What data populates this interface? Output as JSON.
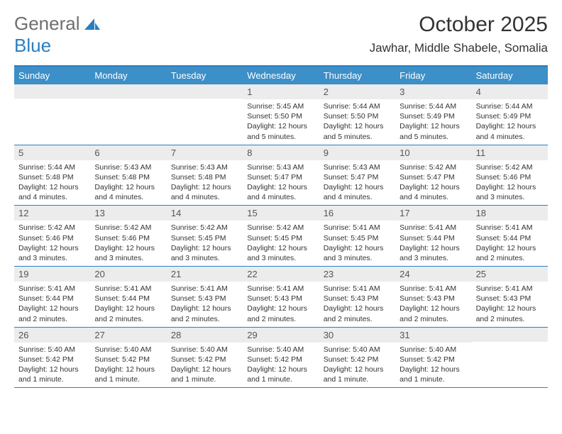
{
  "brand": {
    "part1": "General",
    "part2": "Blue"
  },
  "title": "October 2025",
  "location": "Jawhar, Middle Shabele, Somalia",
  "colors": {
    "header_bg": "#3d8fc7",
    "border": "#2a7fc1",
    "daynum_bg": "#ececec",
    "text": "#333333"
  },
  "weekdays": [
    "Sunday",
    "Monday",
    "Tuesday",
    "Wednesday",
    "Thursday",
    "Friday",
    "Saturday"
  ],
  "weeks": [
    [
      {
        "n": "",
        "sunrise": "",
        "sunset": "",
        "daylight": ""
      },
      {
        "n": "",
        "sunrise": "",
        "sunset": "",
        "daylight": ""
      },
      {
        "n": "",
        "sunrise": "",
        "sunset": "",
        "daylight": ""
      },
      {
        "n": "1",
        "sunrise": "Sunrise: 5:45 AM",
        "sunset": "Sunset: 5:50 PM",
        "daylight": "Daylight: 12 hours and 5 minutes."
      },
      {
        "n": "2",
        "sunrise": "Sunrise: 5:44 AM",
        "sunset": "Sunset: 5:50 PM",
        "daylight": "Daylight: 12 hours and 5 minutes."
      },
      {
        "n": "3",
        "sunrise": "Sunrise: 5:44 AM",
        "sunset": "Sunset: 5:49 PM",
        "daylight": "Daylight: 12 hours and 5 minutes."
      },
      {
        "n": "4",
        "sunrise": "Sunrise: 5:44 AM",
        "sunset": "Sunset: 5:49 PM",
        "daylight": "Daylight: 12 hours and 4 minutes."
      }
    ],
    [
      {
        "n": "5",
        "sunrise": "Sunrise: 5:44 AM",
        "sunset": "Sunset: 5:48 PM",
        "daylight": "Daylight: 12 hours and 4 minutes."
      },
      {
        "n": "6",
        "sunrise": "Sunrise: 5:43 AM",
        "sunset": "Sunset: 5:48 PM",
        "daylight": "Daylight: 12 hours and 4 minutes."
      },
      {
        "n": "7",
        "sunrise": "Sunrise: 5:43 AM",
        "sunset": "Sunset: 5:48 PM",
        "daylight": "Daylight: 12 hours and 4 minutes."
      },
      {
        "n": "8",
        "sunrise": "Sunrise: 5:43 AM",
        "sunset": "Sunset: 5:47 PM",
        "daylight": "Daylight: 12 hours and 4 minutes."
      },
      {
        "n": "9",
        "sunrise": "Sunrise: 5:43 AM",
        "sunset": "Sunset: 5:47 PM",
        "daylight": "Daylight: 12 hours and 4 minutes."
      },
      {
        "n": "10",
        "sunrise": "Sunrise: 5:42 AM",
        "sunset": "Sunset: 5:47 PM",
        "daylight": "Daylight: 12 hours and 4 minutes."
      },
      {
        "n": "11",
        "sunrise": "Sunrise: 5:42 AM",
        "sunset": "Sunset: 5:46 PM",
        "daylight": "Daylight: 12 hours and 3 minutes."
      }
    ],
    [
      {
        "n": "12",
        "sunrise": "Sunrise: 5:42 AM",
        "sunset": "Sunset: 5:46 PM",
        "daylight": "Daylight: 12 hours and 3 minutes."
      },
      {
        "n": "13",
        "sunrise": "Sunrise: 5:42 AM",
        "sunset": "Sunset: 5:46 PM",
        "daylight": "Daylight: 12 hours and 3 minutes."
      },
      {
        "n": "14",
        "sunrise": "Sunrise: 5:42 AM",
        "sunset": "Sunset: 5:45 PM",
        "daylight": "Daylight: 12 hours and 3 minutes."
      },
      {
        "n": "15",
        "sunrise": "Sunrise: 5:42 AM",
        "sunset": "Sunset: 5:45 PM",
        "daylight": "Daylight: 12 hours and 3 minutes."
      },
      {
        "n": "16",
        "sunrise": "Sunrise: 5:41 AM",
        "sunset": "Sunset: 5:45 PM",
        "daylight": "Daylight: 12 hours and 3 minutes."
      },
      {
        "n": "17",
        "sunrise": "Sunrise: 5:41 AM",
        "sunset": "Sunset: 5:44 PM",
        "daylight": "Daylight: 12 hours and 3 minutes."
      },
      {
        "n": "18",
        "sunrise": "Sunrise: 5:41 AM",
        "sunset": "Sunset: 5:44 PM",
        "daylight": "Daylight: 12 hours and 2 minutes."
      }
    ],
    [
      {
        "n": "19",
        "sunrise": "Sunrise: 5:41 AM",
        "sunset": "Sunset: 5:44 PM",
        "daylight": "Daylight: 12 hours and 2 minutes."
      },
      {
        "n": "20",
        "sunrise": "Sunrise: 5:41 AM",
        "sunset": "Sunset: 5:44 PM",
        "daylight": "Daylight: 12 hours and 2 minutes."
      },
      {
        "n": "21",
        "sunrise": "Sunrise: 5:41 AM",
        "sunset": "Sunset: 5:43 PM",
        "daylight": "Daylight: 12 hours and 2 minutes."
      },
      {
        "n": "22",
        "sunrise": "Sunrise: 5:41 AM",
        "sunset": "Sunset: 5:43 PM",
        "daylight": "Daylight: 12 hours and 2 minutes."
      },
      {
        "n": "23",
        "sunrise": "Sunrise: 5:41 AM",
        "sunset": "Sunset: 5:43 PM",
        "daylight": "Daylight: 12 hours and 2 minutes."
      },
      {
        "n": "24",
        "sunrise": "Sunrise: 5:41 AM",
        "sunset": "Sunset: 5:43 PM",
        "daylight": "Daylight: 12 hours and 2 minutes."
      },
      {
        "n": "25",
        "sunrise": "Sunrise: 5:41 AM",
        "sunset": "Sunset: 5:43 PM",
        "daylight": "Daylight: 12 hours and 2 minutes."
      }
    ],
    [
      {
        "n": "26",
        "sunrise": "Sunrise: 5:40 AM",
        "sunset": "Sunset: 5:42 PM",
        "daylight": "Daylight: 12 hours and 1 minute."
      },
      {
        "n": "27",
        "sunrise": "Sunrise: 5:40 AM",
        "sunset": "Sunset: 5:42 PM",
        "daylight": "Daylight: 12 hours and 1 minute."
      },
      {
        "n": "28",
        "sunrise": "Sunrise: 5:40 AM",
        "sunset": "Sunset: 5:42 PM",
        "daylight": "Daylight: 12 hours and 1 minute."
      },
      {
        "n": "29",
        "sunrise": "Sunrise: 5:40 AM",
        "sunset": "Sunset: 5:42 PM",
        "daylight": "Daylight: 12 hours and 1 minute."
      },
      {
        "n": "30",
        "sunrise": "Sunrise: 5:40 AM",
        "sunset": "Sunset: 5:42 PM",
        "daylight": "Daylight: 12 hours and 1 minute."
      },
      {
        "n": "31",
        "sunrise": "Sunrise: 5:40 AM",
        "sunset": "Sunset: 5:42 PM",
        "daylight": "Daylight: 12 hours and 1 minute."
      },
      {
        "n": "",
        "sunrise": "",
        "sunset": "",
        "daylight": ""
      }
    ]
  ]
}
